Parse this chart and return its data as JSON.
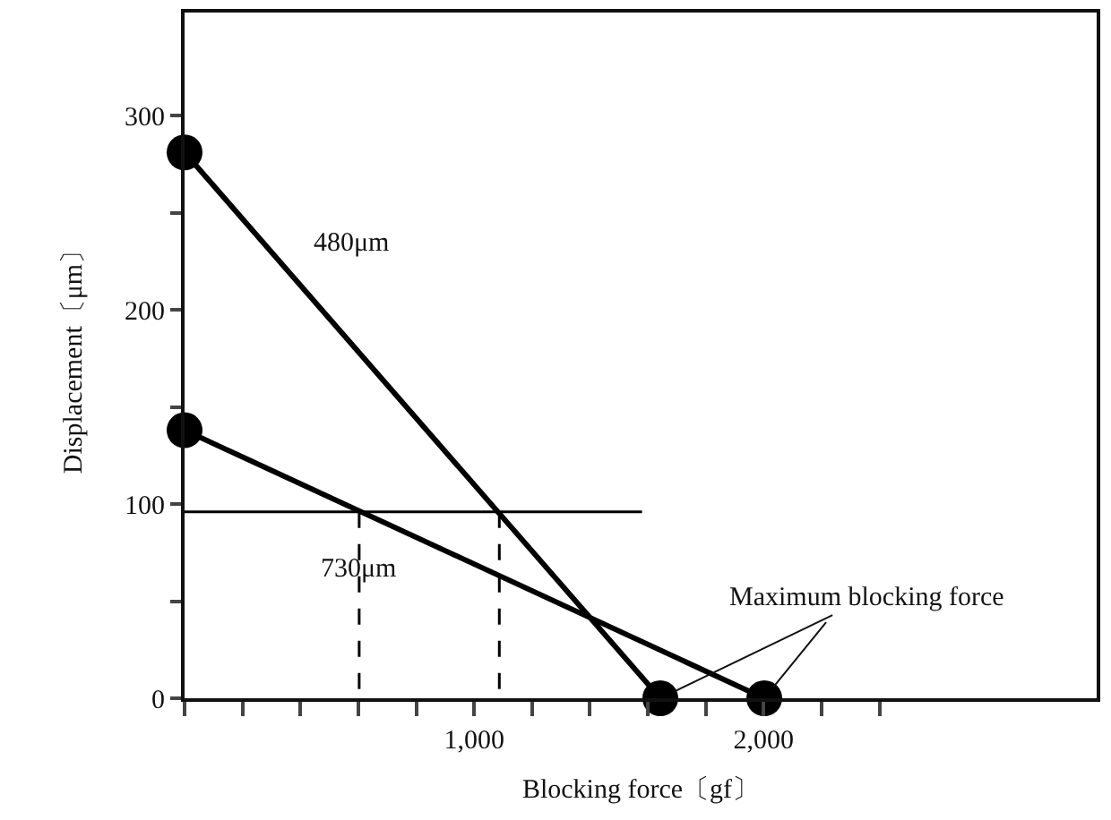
{
  "chart_data": {
    "type": "line",
    "xlabel": "Blocking force〔gf〕",
    "ylabel": "Displacement〔μm〕",
    "xlim": [
      0,
      3150
    ],
    "ylim": [
      0,
      353
    ],
    "xticks": [
      {
        "value": 0,
        "label": null
      },
      {
        "value": 200,
        "label": null
      },
      {
        "value": 400,
        "label": null
      },
      {
        "value": 600,
        "label": null
      },
      {
        "value": 800,
        "label": null
      },
      {
        "value": 1000,
        "label": "1,000"
      },
      {
        "value": 1200,
        "label": null
      },
      {
        "value": 1400,
        "label": null
      },
      {
        "value": 1600,
        "label": null
      },
      {
        "value": 1800,
        "label": null
      },
      {
        "value": 2000,
        "label": "2,000"
      },
      {
        "value": 2200,
        "label": null
      },
      {
        "value": 2400,
        "label": null
      }
    ],
    "yticks": [
      0,
      {
        "value": 50,
        "label": null
      },
      100,
      {
        "value": 150,
        "label": null
      },
      200,
      {
        "value": 250,
        "label": null
      },
      300
    ],
    "series": [
      {
        "color": "#000000",
        "x": [
          0,
          1643
        ],
        "values": [
          281,
          0
        ],
        "marker": "circle",
        "line_style": "solid"
      },
      {
        "color": "#000000",
        "x": [
          0,
          2002
        ],
        "values": [
          138,
          0
        ],
        "marker": "circle",
        "line_style": "solid"
      },
      {
        "color": "#000000",
        "x": [
          0,
          1580
        ],
        "values": [
          96,
          96
        ],
        "marker": "none",
        "line_style": "solid"
      },
      {
        "color": "#000000",
        "x": [
          603,
          603
        ],
        "values": [
          96,
          0
        ],
        "marker": "none",
        "line_style": "dashed"
      },
      {
        "color": "#000000",
        "x": [
          1087,
          1087
        ],
        "values": [
          96,
          0
        ],
        "marker": "none",
        "line_style": "dashed"
      }
    ],
    "annotations": [
      "480μm",
      {
        "text": "730μm",
        "x": 603,
        "y": 66
      },
      {
        "text": "Maximum blocking force",
        "x": 1643,
        "y": 0
      }
    ]
  }
}
